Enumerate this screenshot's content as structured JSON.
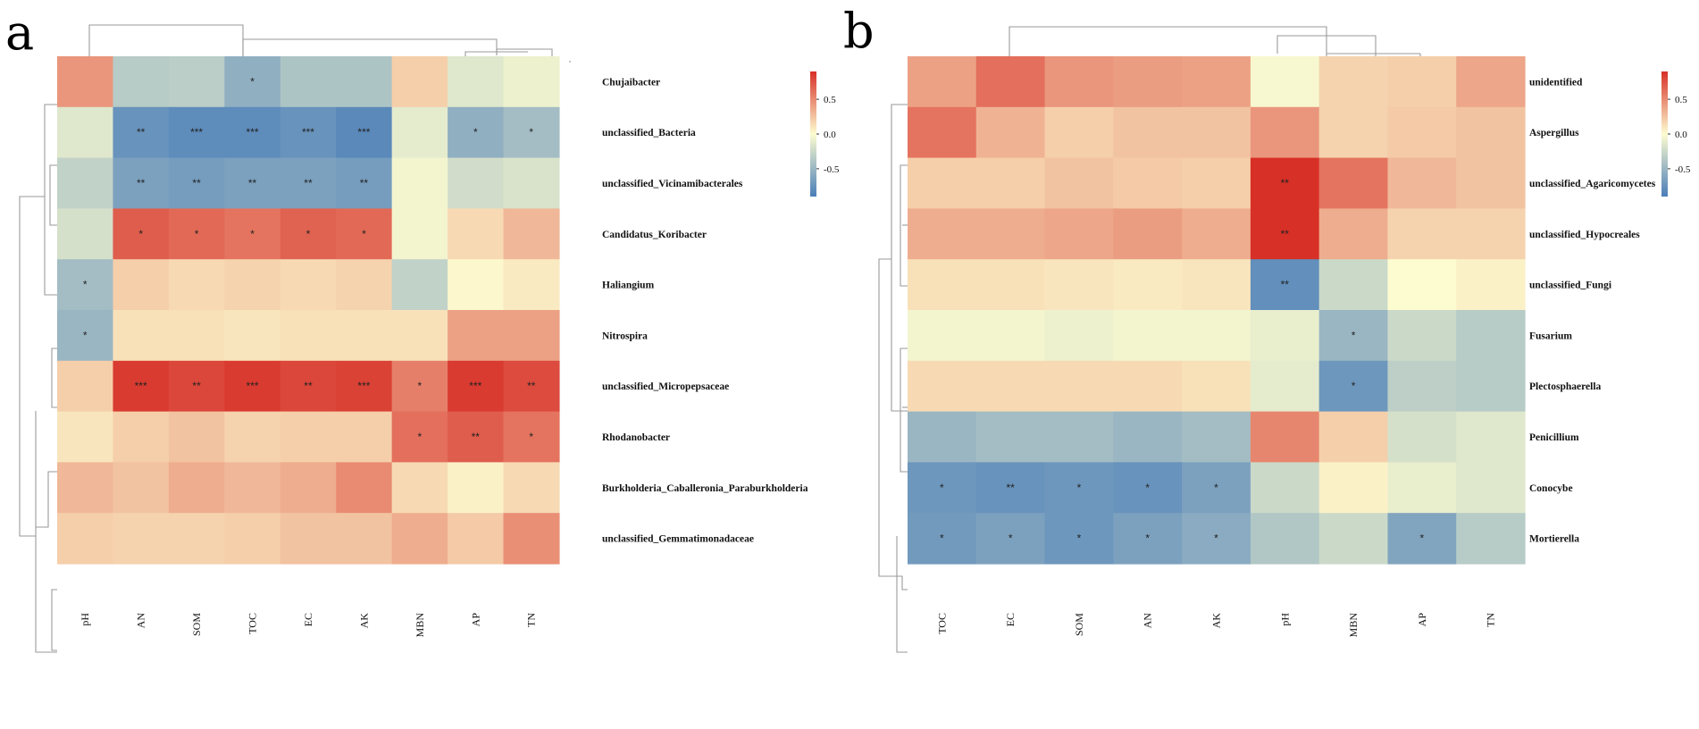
{
  "chart_data": [
    {
      "type": "heatmap",
      "panel": "a",
      "rows": [
        "Chujaibacter",
        "unclassified_Bacteria",
        "unclassified_Vicinamibacterales",
        "Candidatus_Koribacter",
        "Haliangium",
        "Nitrospira",
        "unclassified_Micropepsaceae",
        "Rhodanobacter",
        "Burkholderia_Caballeronia_Paraburkholderia",
        "unclassified_Gemmatimonadaceae"
      ],
      "columns": [
        "pH",
        "AN",
        "SOM",
        "TOC",
        "EC",
        "AK",
        "MBN",
        "AP",
        "TN"
      ],
      "values": [
        [
          0.45,
          -0.35,
          -0.33,
          -0.55,
          -0.4,
          -0.4,
          0.2,
          -0.15,
          -0.08
        ],
        [
          -0.15,
          -0.75,
          -0.8,
          -0.8,
          -0.75,
          -0.82,
          -0.12,
          -0.55,
          -0.45
        ],
        [
          -0.3,
          -0.65,
          -0.68,
          -0.65,
          -0.65,
          -0.68,
          -0.05,
          -0.22,
          -0.18
        ],
        [
          -0.2,
          0.7,
          0.65,
          0.6,
          0.68,
          0.65,
          -0.05,
          0.15,
          0.3
        ],
        [
          -0.45,
          0.2,
          0.15,
          0.18,
          0.15,
          0.18,
          -0.3,
          0.02,
          0.08
        ],
        [
          -0.5,
          0.12,
          0.12,
          0.1,
          0.12,
          0.12,
          0.12,
          0.4,
          0.4
        ],
        [
          0.2,
          0.85,
          0.8,
          0.85,
          0.8,
          0.82,
          0.55,
          0.85,
          0.78
        ],
        [
          0.1,
          0.2,
          0.25,
          0.18,
          0.2,
          0.2,
          0.62,
          0.7,
          0.6
        ],
        [
          0.3,
          0.25,
          0.35,
          0.3,
          0.35,
          0.5,
          0.15,
          0.05,
          0.15
        ],
        [
          0.2,
          0.18,
          0.18,
          0.2,
          0.25,
          0.25,
          0.35,
          0.22,
          0.48
        ]
      ],
      "significance": [
        [
          "",
          "",
          "",
          "*",
          "",
          "",
          "",
          "",
          ""
        ],
        [
          "",
          "**",
          "***",
          "***",
          "***",
          "***",
          "",
          "*",
          "*"
        ],
        [
          "",
          "**",
          "**",
          "**",
          "**",
          "**",
          "",
          "",
          ""
        ],
        [
          "",
          "*",
          "*",
          "*",
          "*",
          "*",
          "",
          "",
          ""
        ],
        [
          "*",
          "",
          "",
          "",
          "",
          "",
          "",
          "",
          ""
        ],
        [
          "*",
          "",
          "",
          "",
          "",
          "",
          "",
          "",
          ""
        ],
        [
          "",
          "***",
          "**",
          "***",
          "**",
          "***",
          "*",
          "***",
          "**"
        ],
        [
          "",
          "",
          "",
          "",
          "",
          "",
          "*",
          "**",
          "*"
        ],
        [
          "",
          "",
          "",
          "",
          "",
          "",
          "",
          "",
          ""
        ],
        [
          "",
          "",
          "",
          "",
          "",
          "",
          "",
          "",
          ""
        ]
      ],
      "colorbar": {
        "range": [
          -0.9,
          0.9
        ],
        "ticks": [
          0.5,
          0.0,
          -0.5
        ],
        "tick_labels": [
          "0.5",
          "0.0",
          "-0.5"
        ],
        "colors": [
          "#4a7eb8",
          "#fdfcd0",
          "#d73027"
        ]
      }
    },
    {
      "type": "heatmap",
      "panel": "b",
      "rows": [
        "unidentified",
        "Aspergillus",
        "unclassified_Agaricomycetes",
        "unclassified_Hypocreales",
        "unclassified_Fungi",
        "Fusarium",
        "Plectosphaerella",
        "Penicillium",
        "Conocybe",
        "Mortierella"
      ],
      "columns": [
        "TOC",
        "EC",
        "SOM",
        "AN",
        "AK",
        "pH",
        "MBN",
        "AP",
        "TN"
      ],
      "values": [
        [
          0.4,
          0.62,
          0.45,
          0.42,
          0.4,
          -0.03,
          0.18,
          0.2,
          0.38
        ],
        [
          0.6,
          0.32,
          0.2,
          0.25,
          0.25,
          0.45,
          0.18,
          0.22,
          0.25
        ],
        [
          0.2,
          0.2,
          0.25,
          0.22,
          0.2,
          0.9,
          0.6,
          0.3,
          0.25
        ],
        [
          0.35,
          0.35,
          0.38,
          0.42,
          0.35,
          0.9,
          0.35,
          0.18,
          0.18
        ],
        [
          0.12,
          0.12,
          0.1,
          0.08,
          0.1,
          -0.78,
          -0.25,
          0.0,
          0.05
        ],
        [
          -0.05,
          -0.05,
          -0.08,
          -0.05,
          -0.05,
          -0.1,
          -0.5,
          -0.25,
          -0.35
        ],
        [
          0.15,
          0.15,
          0.15,
          0.15,
          0.12,
          -0.12,
          -0.72,
          -0.32,
          -0.35
        ],
        [
          -0.5,
          -0.45,
          -0.45,
          -0.5,
          -0.45,
          0.52,
          0.2,
          -0.2,
          -0.15
        ],
        [
          -0.72,
          -0.75,
          -0.72,
          -0.75,
          -0.65,
          -0.25,
          0.05,
          -0.1,
          -0.15
        ],
        [
          -0.7,
          -0.65,
          -0.72,
          -0.65,
          -0.58,
          -0.38,
          -0.25,
          -0.62,
          -0.35
        ]
      ],
      "significance": [
        [
          "",
          "",
          "",
          "",
          "",
          "",
          "",
          "",
          ""
        ],
        [
          "",
          "",
          "",
          "",
          "",
          "",
          "",
          "",
          ""
        ],
        [
          "",
          "",
          "",
          "",
          "",
          "**",
          "",
          "",
          ""
        ],
        [
          "",
          "",
          "",
          "",
          "",
          "**",
          "",
          "",
          ""
        ],
        [
          "",
          "",
          "",
          "",
          "",
          "**",
          "",
          "",
          ""
        ],
        [
          "",
          "",
          "",
          "",
          "",
          "",
          "*",
          "",
          ""
        ],
        [
          "",
          "",
          "",
          "",
          "",
          "",
          "*",
          "",
          ""
        ],
        [
          "",
          "",
          "",
          "",
          "",
          "",
          "",
          "",
          ""
        ],
        [
          "*",
          "**",
          "*",
          "*",
          "*",
          "",
          "",
          "",
          ""
        ],
        [
          "*",
          "*",
          "*",
          "*",
          "*",
          "",
          "",
          "*",
          ""
        ]
      ],
      "colorbar": {
        "range": [
          -0.9,
          0.9
        ],
        "ticks": [
          0.5,
          0.0,
          -0.5
        ],
        "tick_labels": [
          "0.5",
          "0.0",
          "-0.5"
        ],
        "colors": [
          "#4a7eb8",
          "#fdfcd0",
          "#d73027"
        ]
      }
    }
  ]
}
